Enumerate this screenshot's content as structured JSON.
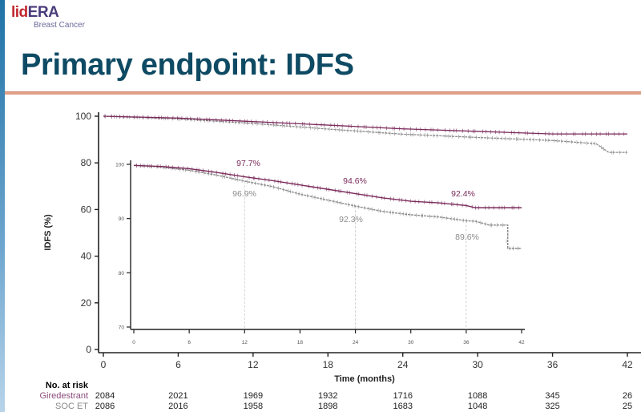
{
  "slide": {
    "logo": {
      "part1": "lid",
      "part2": "ERA",
      "subtitle": "Breast Cancer"
    },
    "title": "Primary endpoint: IDFS",
    "colors": {
      "title": "#0e4a63",
      "rule": "#e0a088",
      "giredestrant": "#7a2a5a",
      "soc_et": "#8a8a8a"
    }
  },
  "chart_data": [
    {
      "type": "line",
      "title": "Primary endpoint: IDFS (Kaplan-Meier)",
      "xlabel": "Time (months)",
      "ylabel": "IDFS (%)",
      "x_ticks": [
        0,
        6,
        12,
        18,
        24,
        30,
        36,
        42
      ],
      "y_ticks": [
        0,
        20,
        40,
        60,
        80,
        100
      ],
      "xlim": [
        0,
        42
      ],
      "ylim": [
        0,
        100
      ],
      "grid": false,
      "series": [
        {
          "name": "Giredestrant",
          "color": "#7a2a5a",
          "x": [
            0,
            6,
            12,
            18,
            24,
            30,
            36,
            42
          ],
          "values": [
            100,
            99.2,
            97.7,
            96.2,
            94.6,
            93.5,
            92.4,
            92.4
          ]
        },
        {
          "name": "SOC ET",
          "color": "#8a8a8a",
          "x": [
            0,
            6,
            12,
            18,
            24,
            30,
            36,
            39.5,
            40.5,
            42
          ],
          "values": [
            100,
            98.9,
            96.9,
            94.5,
            92.3,
            90.9,
            89.6,
            88.2,
            84.5,
            84.5
          ]
        }
      ],
      "number_at_risk": {
        "label": "No. at risk",
        "times": [
          0,
          6,
          12,
          18,
          24,
          30,
          36,
          42
        ],
        "rows": [
          {
            "name": "Giredestrant",
            "values": [
              "2084",
              "2021",
              "1969",
              "1932",
              "1716",
              "1088",
              "345",
              "26"
            ]
          },
          {
            "name": "SOC ET",
            "values": [
              "2086",
              "2016",
              "1958",
              "1898",
              "1683",
              "1048",
              "325",
              "25"
            ]
          }
        ]
      }
    },
    {
      "type": "line",
      "title": "Inset (zoomed y-axis)",
      "x_ticks": [
        0,
        6,
        12,
        18,
        24,
        30,
        36,
        42
      ],
      "y_ticks": [
        70,
        80,
        90,
        100
      ],
      "xlim": [
        0,
        42
      ],
      "ylim": [
        70,
        100
      ],
      "annotations": [
        {
          "x": 12,
          "series": "Giredestrant",
          "text": "97.7%"
        },
        {
          "x": 12,
          "series": "SOC ET",
          "text": "96.9%"
        },
        {
          "x": 24,
          "series": "Giredestrant",
          "text": "94.6%"
        },
        {
          "x": 24,
          "series": "SOC ET",
          "text": "92.3%"
        },
        {
          "x": 36,
          "series": "Giredestrant",
          "text": "92.4%"
        },
        {
          "x": 36,
          "series": "SOC ET",
          "text": "89.6%"
        }
      ],
      "series": [
        {
          "name": "Giredestrant",
          "color": "#7a2a5a",
          "x": [
            0,
            3,
            6,
            9,
            12,
            15,
            18,
            21,
            24,
            27,
            30,
            33,
            36,
            37,
            42
          ],
          "values": [
            99.8,
            99.6,
            99.2,
            98.5,
            97.7,
            97.0,
            96.2,
            95.4,
            94.6,
            93.8,
            93.2,
            92.9,
            92.4,
            92.0,
            92.0
          ]
        },
        {
          "name": "SOC ET",
          "color": "#8a8a8a",
          "x": [
            0,
            3,
            6,
            9,
            12,
            15,
            18,
            21,
            24,
            27,
            30,
            33,
            36,
            37,
            38.5,
            40,
            40.5,
            42
          ],
          "values": [
            99.8,
            99.5,
            98.9,
            98.0,
            96.9,
            95.9,
            94.5,
            93.4,
            92.3,
            91.3,
            90.7,
            90.3,
            89.6,
            89.5,
            88.8,
            88.8,
            84.5,
            84.5
          ]
        }
      ]
    }
  ]
}
